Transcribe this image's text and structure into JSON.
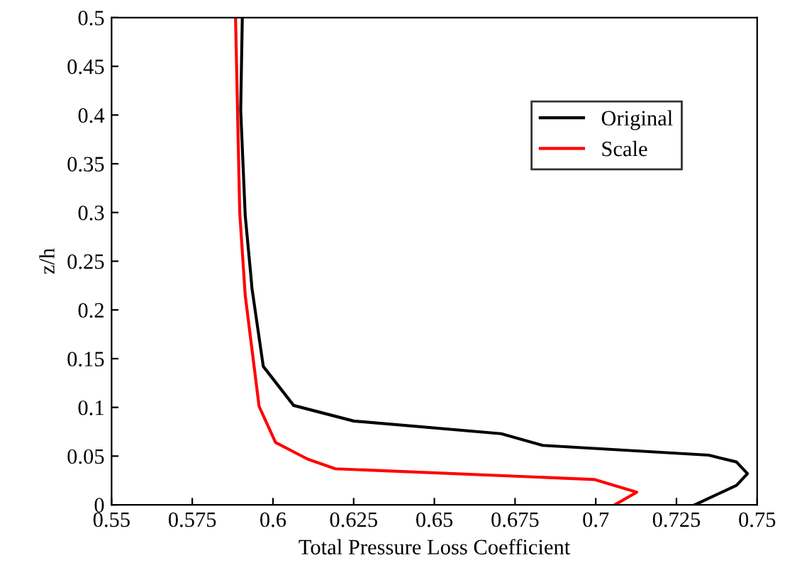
{
  "chart_data": {
    "type": "line",
    "xlabel": "Total Pressure Loss Coefficient",
    "ylabel": "z/h",
    "xlim": [
      0.55,
      0.75
    ],
    "xticks": [
      0.55,
      0.575,
      0.6,
      0.625,
      0.65,
      0.675,
      0.7,
      0.725,
      0.75
    ],
    "ylim": [
      0,
      0.5
    ],
    "yticks": [
      0,
      0.05,
      0.1,
      0.15,
      0.2,
      0.25,
      0.3,
      0.35,
      0.4,
      0.45,
      0.5
    ],
    "grid": false,
    "legend": "top right",
    "marker": "none",
    "line_style": "solid",
    "series": [
      {
        "name": "Original",
        "color": "#000000",
        "x": [
          0.5905,
          0.59,
          0.5914,
          0.5931,
          0.5935,
          0.597,
          0.6064,
          0.625,
          0.6707,
          0.6836,
          0.735,
          0.7436,
          0.747,
          0.7436,
          0.7307
        ],
        "values": [
          0.5,
          0.405,
          0.297,
          0.237,
          0.222,
          0.142,
          0.102,
          0.086,
          0.073,
          0.061,
          0.051,
          0.044,
          0.032,
          0.02,
          0
        ]
      },
      {
        "name": "Scale",
        "color": "#ff0000",
        "x": [
          0.5884,
          0.5897,
          0.5914,
          0.5957,
          0.6008,
          0.6107,
          0.6193,
          0.6995,
          0.7127,
          0.7059
        ],
        "values": [
          0.5,
          0.3,
          0.215,
          0.101,
          0.064,
          0.047,
          0.037,
          0.026,
          0.013,
          0
        ]
      }
    ]
  }
}
